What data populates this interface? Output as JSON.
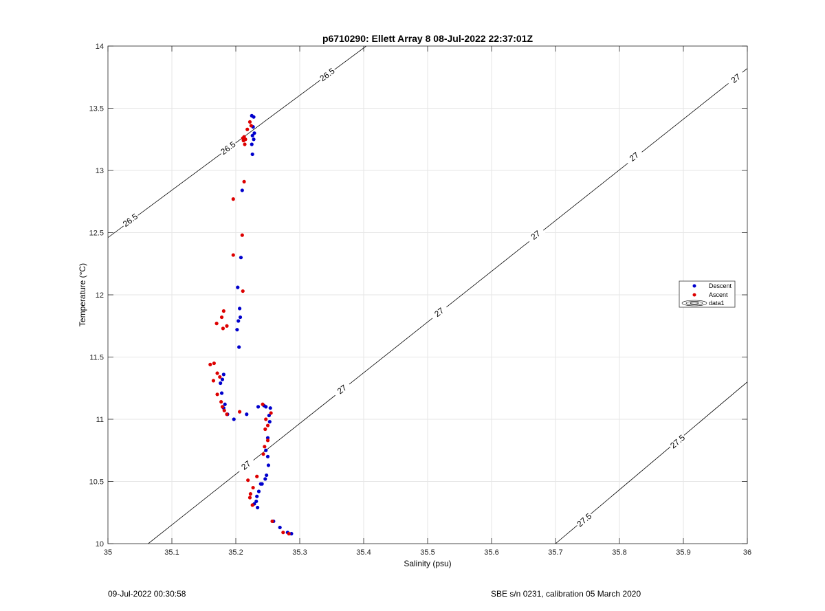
{
  "chart_data": {
    "type": "scatter",
    "title": "p6710290: Ellett Array 8 08-Jul-2022 22:37:01Z",
    "xlabel": "Salinity (psu)",
    "ylabel": "Temperature (°C)",
    "xlim": [
      35,
      36
    ],
    "ylim": [
      10,
      14
    ],
    "xticks": [
      "35",
      "35.1",
      "35.2",
      "35.3",
      "35.4",
      "35.5",
      "35.6",
      "35.7",
      "35.8",
      "35.9",
      "36"
    ],
    "yticks": [
      "10",
      "10.5",
      "11",
      "11.5",
      "12",
      "12.5",
      "13",
      "13.5",
      "14"
    ],
    "grid": true,
    "legend_position": "right",
    "legend": [
      "Descent",
      "Ascent",
      "data1"
    ],
    "colors": {
      "descent": "#0000cc",
      "ascent": "#dd0000",
      "contour": "#000000",
      "grid": "#e6e6e6"
    },
    "series": [
      {
        "name": "Descent",
        "color": "#0000cc",
        "points": [
          [
            35.225,
            13.44
          ],
          [
            35.228,
            13.43
          ],
          [
            35.227,
            13.35
          ],
          [
            35.229,
            13.3
          ],
          [
            35.226,
            13.28
          ],
          [
            35.228,
            13.25
          ],
          [
            35.225,
            13.21
          ],
          [
            35.226,
            13.13
          ],
          [
            35.21,
            12.84
          ],
          [
            35.208,
            12.3
          ],
          [
            35.203,
            12.06
          ],
          [
            35.206,
            11.89
          ],
          [
            35.207,
            11.82
          ],
          [
            35.204,
            11.79
          ],
          [
            35.202,
            11.72
          ],
          [
            35.205,
            11.58
          ],
          [
            35.181,
            11.36
          ],
          [
            35.179,
            11.32
          ],
          [
            35.176,
            11.29
          ],
          [
            35.178,
            11.21
          ],
          [
            35.183,
            11.12
          ],
          [
            35.181,
            11.09
          ],
          [
            35.187,
            11.04
          ],
          [
            35.197,
            11.0
          ],
          [
            35.217,
            11.04
          ],
          [
            35.235,
            11.1
          ],
          [
            35.244,
            11.11
          ],
          [
            35.247,
            11.1
          ],
          [
            35.254,
            11.09
          ],
          [
            35.252,
            11.03
          ],
          [
            35.253,
            10.98
          ],
          [
            35.25,
            10.85
          ],
          [
            35.247,
            10.75
          ],
          [
            35.25,
            10.7
          ],
          [
            35.251,
            10.63
          ],
          [
            35.248,
            10.55
          ],
          [
            35.246,
            10.52
          ],
          [
            35.241,
            10.48
          ],
          [
            35.239,
            10.48
          ],
          [
            35.236,
            10.42
          ],
          [
            35.233,
            10.38
          ],
          [
            35.232,
            10.34
          ],
          [
            35.229,
            10.32
          ],
          [
            35.234,
            10.29
          ],
          [
            35.259,
            10.18
          ],
          [
            35.269,
            10.13
          ],
          [
            35.281,
            10.09
          ],
          [
            35.287,
            10.08
          ]
        ]
      },
      {
        "name": "Ascent",
        "color": "#dd0000",
        "points": [
          [
            35.222,
            13.39
          ],
          [
            35.224,
            13.36
          ],
          [
            35.218,
            13.33
          ],
          [
            35.213,
            13.27
          ],
          [
            35.211,
            13.26
          ],
          [
            35.215,
            13.25
          ],
          [
            35.212,
            13.24
          ],
          [
            35.214,
            13.21
          ],
          [
            35.213,
            12.91
          ],
          [
            35.196,
            12.77
          ],
          [
            35.21,
            12.48
          ],
          [
            35.196,
            12.32
          ],
          [
            35.211,
            12.03
          ],
          [
            35.181,
            11.87
          ],
          [
            35.178,
            11.82
          ],
          [
            35.17,
            11.77
          ],
          [
            35.18,
            11.73
          ],
          [
            35.186,
            11.75
          ],
          [
            35.16,
            11.44
          ],
          [
            35.166,
            11.45
          ],
          [
            35.171,
            11.37
          ],
          [
            35.175,
            11.34
          ],
          [
            35.165,
            11.31
          ],
          [
            35.171,
            11.2
          ],
          [
            35.177,
            11.14
          ],
          [
            35.179,
            11.1
          ],
          [
            35.182,
            11.07
          ],
          [
            35.186,
            11.04
          ],
          [
            35.206,
            11.06
          ],
          [
            35.242,
            11.12
          ],
          [
            35.255,
            11.05
          ],
          [
            35.247,
            11.0
          ],
          [
            35.25,
            10.95
          ],
          [
            35.246,
            10.92
          ],
          [
            35.25,
            10.83
          ],
          [
            35.245,
            10.78
          ],
          [
            35.243,
            10.72
          ],
          [
            35.233,
            10.54
          ],
          [
            35.219,
            10.51
          ],
          [
            35.227,
            10.45
          ],
          [
            35.223,
            10.4
          ],
          [
            35.222,
            10.37
          ],
          [
            35.226,
            10.31
          ],
          [
            35.257,
            10.18
          ],
          [
            35.274,
            10.09
          ],
          [
            35.283,
            10.08
          ]
        ]
      }
    ],
    "contours": [
      {
        "label": "26.5",
        "value": 26.5,
        "from": [
          35,
          12.46
        ],
        "to": [
          35.404,
          14
        ],
        "label_positions": [
          [
            35.035,
            12.6
          ],
          [
            35.188,
            13.18
          ],
          [
            35.343,
            13.77
          ]
        ]
      },
      {
        "label": "27",
        "value": 27,
        "from": [
          35.063,
          10
        ],
        "to": [
          36,
          13.82
        ],
        "label_positions": [
          [
            35.216,
            10.63
          ],
          [
            35.366,
            11.24
          ],
          [
            35.518,
            11.86
          ],
          [
            35.669,
            12.48
          ],
          [
            35.823,
            13.11
          ],
          [
            35.982,
            13.74
          ]
        ]
      },
      {
        "label": "27.5",
        "value": 27.5,
        "from": [
          35.7,
          10
        ],
        "to": [
          36,
          11.3
        ],
        "label_positions": [
          [
            35.745,
            10.19
          ],
          [
            35.891,
            10.82
          ]
        ]
      }
    ]
  },
  "footer": {
    "left": "09-Jul-2022 00:30:58",
    "right": "SBE s/n 0231, calibration 05 March 2020"
  }
}
